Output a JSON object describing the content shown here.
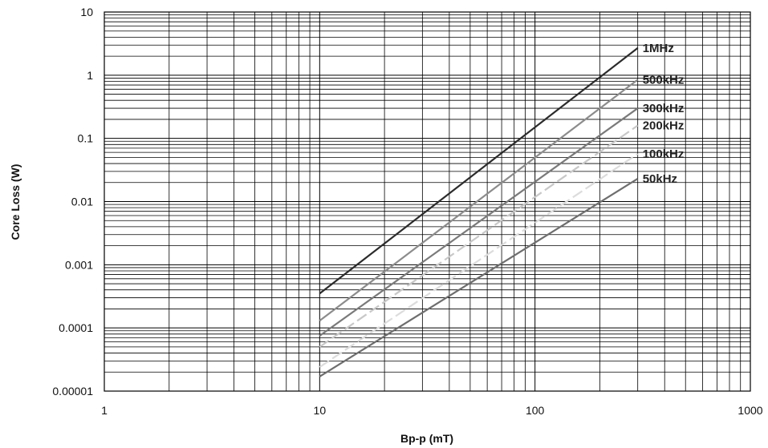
{
  "chart_data": {
    "type": "line",
    "xlabel": "Bp-p (mT)",
    "ylabel": "Core Loss (W)",
    "x_scale": "log",
    "y_scale": "log",
    "xlim": [
      1,
      1000
    ],
    "ylim": [
      1e-05,
      10
    ],
    "grid": true,
    "x_ticks": [
      {
        "value": 1,
        "label": "1"
      },
      {
        "value": 10,
        "label": "10"
      },
      {
        "value": 100,
        "label": "100"
      },
      {
        "value": 1000,
        "label": "1000"
      }
    ],
    "y_ticks": [
      {
        "value": 10,
        "label": "10"
      },
      {
        "value": 1,
        "label": "1"
      },
      {
        "value": 0.1,
        "label": "0.1"
      },
      {
        "value": 0.01,
        "label": "0.01"
      },
      {
        "value": 0.001,
        "label": "0.001"
      },
      {
        "value": 0.0001,
        "label": "0.0001"
      },
      {
        "value": 1e-05,
        "label": "0.00001"
      }
    ],
    "series": [
      {
        "name": "1MHz",
        "color": "#2b2b2b",
        "dash": "solid",
        "x": [
          10,
          300
        ],
        "y": [
          0.00035,
          2.7
        ]
      },
      {
        "name": "500kHz",
        "color": "#8c8c8c",
        "dash": "solid",
        "x": [
          10,
          300
        ],
        "y": [
          0.00013,
          0.85
        ]
      },
      {
        "name": "300kHz",
        "color": "#7a7a7a",
        "dash": "solid",
        "x": [
          10,
          300
        ],
        "y": [
          7.5e-05,
          0.3
        ]
      },
      {
        "name": "200kHz",
        "color": "#c8c8c8",
        "dash": "dashed",
        "x": [
          10,
          300
        ],
        "y": [
          5e-05,
          0.16
        ]
      },
      {
        "name": "100kHz",
        "color": "#dcdcdc",
        "dash": "dashed",
        "x": [
          10,
          300
        ],
        "y": [
          2.4e-05,
          0.057
        ]
      },
      {
        "name": "50kHz",
        "color": "#6e6e6e",
        "dash": "solid",
        "x": [
          10,
          300
        ],
        "y": [
          1.7e-05,
          0.023
        ]
      }
    ]
  }
}
